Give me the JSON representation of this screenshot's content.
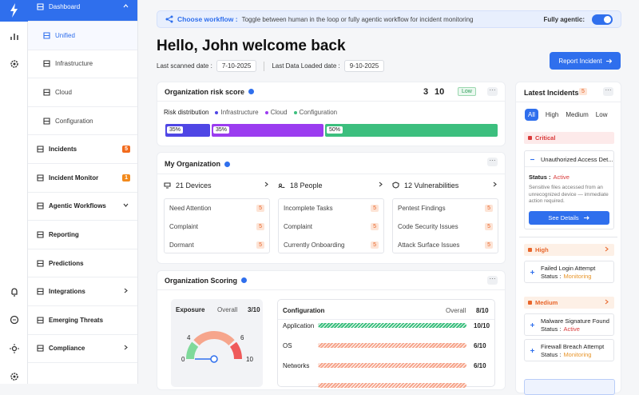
{
  "sidebar": {
    "items": [
      {
        "label": "Dashboard"
      },
      {
        "label": "Unified"
      },
      {
        "label": "Infrastructure"
      },
      {
        "label": "Cloud"
      },
      {
        "label": "Configuration"
      },
      {
        "label": "Incidents",
        "badge": "5"
      },
      {
        "label": "Incident Monitor",
        "badge": "1"
      },
      {
        "label": "Agentic Workflows"
      },
      {
        "label": "Reporting"
      },
      {
        "label": "Predictions"
      },
      {
        "label": "Integrations"
      },
      {
        "label": "Emerging Threats"
      },
      {
        "label": "Compliance"
      }
    ]
  },
  "banner": {
    "title": "Choose workflow :",
    "text": "Toggle between human in the loop or fully agentic workflow for incident monitoring",
    "toggle_label": "Fully agentic:"
  },
  "header": {
    "greeting": "Hello, John welcome back",
    "scanned_label": "Last scanned date :",
    "scanned_date": "7-10-2025",
    "loaded_label": "Last Data Loaded date :",
    "loaded_date": "9-10-2025",
    "button": "Report Incident"
  },
  "risk": {
    "title": "Organization risk score",
    "score": "3",
    "max": "10",
    "level": "Low",
    "distribution_label": "Risk distribution",
    "legend": [
      "Infrastructure",
      "Cloud",
      "Configuration"
    ],
    "segments": [
      "35%",
      "35%",
      "50%"
    ]
  },
  "organization": {
    "title": "My Organization",
    "groups": [
      {
        "title": "21 Devices",
        "items": [
          {
            "label": "Need Attention",
            "count": "5"
          },
          {
            "label": "Complaint",
            "count": "5"
          },
          {
            "label": "Dormant",
            "count": "5"
          }
        ]
      },
      {
        "title": "18 People",
        "items": [
          {
            "label": "Incomplete Tasks",
            "count": "5"
          },
          {
            "label": "Complaint",
            "count": "5"
          },
          {
            "label": "Currently Onboarding",
            "count": "5"
          }
        ]
      },
      {
        "title": "12 Vulnerabilities",
        "items": [
          {
            "label": "Pentest Findings",
            "count": "5"
          },
          {
            "label": "Code Security Issues",
            "count": "5"
          },
          {
            "label": "Attack Surface Issues",
            "count": "5"
          }
        ]
      }
    ]
  },
  "scoring": {
    "title": "Organization Scoring",
    "exposure": {
      "title": "Exposure",
      "overall_label": "Overall",
      "overall": "3/10",
      "gauge_labels": [
        "0",
        "4",
        "6",
        "10"
      ]
    },
    "configuration": {
      "title": "Configuration",
      "overall_label": "Overall",
      "overall": "8/10",
      "rows": [
        {
          "label": "Application",
          "score": "10/10"
        },
        {
          "label": "OS",
          "score": "6/10"
        },
        {
          "label": "Networks",
          "score": "6/10"
        }
      ]
    }
  },
  "incidents": {
    "title": "Latest Incidents",
    "count": "5",
    "tabs": [
      "All",
      "High",
      "Medium",
      "Low"
    ],
    "groups": [
      {
        "level": "Critical",
        "items": [
          {
            "title": "Unauthorized Access Det...",
            "status_label": "Status :",
            "status": "Active",
            "description": "Sensitive files accessed from an unrecognized device — immediate action required.",
            "button": "See Details"
          }
        ]
      },
      {
        "level": "High",
        "items": [
          {
            "title": "Failed Login Attempt",
            "status_label": "Status :",
            "status": "Monitoring"
          }
        ]
      },
      {
        "level": "Medium",
        "items": [
          {
            "title": "Malware Signature Found",
            "status_label": "Status :",
            "status": "Active"
          },
          {
            "title": "Firewall Breach Attempt",
            "status_label": "Status :",
            "status": "Monitoring"
          }
        ]
      }
    ]
  }
}
